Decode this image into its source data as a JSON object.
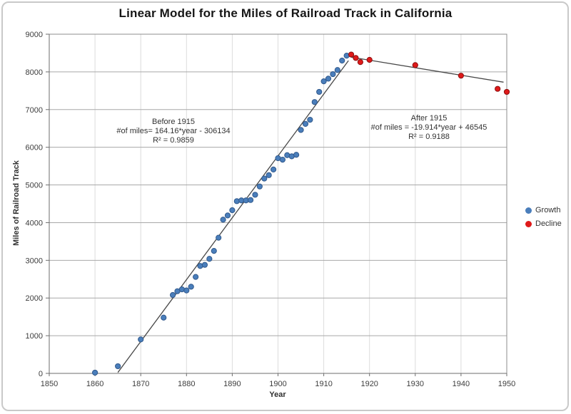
{
  "title": "Linear Model for the Miles of Railroad Track in California",
  "x_axis_title": "Year",
  "y_axis_title": "Miles of Railroad Track",
  "annotations": {
    "before_1915": {
      "title": "Before 1915",
      "equation": "#of miles= 164.16*year - 306134",
      "r_squared": "R² = 0.9859"
    },
    "after_1915": {
      "title": "After 1915",
      "equation": "#of miles = -19.914*year + 46545",
      "r_squared": "R² = 0.9188"
    }
  },
  "legend": {
    "items": [
      {
        "label": "Growth",
        "color": "#4A7EBB"
      },
      {
        "label": "Decline",
        "color": "#DF1A1A"
      }
    ]
  },
  "colors": {
    "h_grid": "#a8a8a8",
    "v_grid": "#dcdcdc",
    "plot_border": "#8c8c8c",
    "axis": "#6e6e6e",
    "tick_text": "#3d3d3d",
    "trendline": "#474747"
  },
  "chart_data": {
    "type": "scatter",
    "title": "Linear Model for the Miles of Railroad Track in California",
    "xlabel": "Year",
    "ylabel": "Miles of Railroad Track",
    "xlim": [
      1850,
      1950
    ],
    "ylim": [
      0,
      9000
    ],
    "x_ticks": [
      1850,
      1860,
      1870,
      1880,
      1890,
      1900,
      1910,
      1920,
      1930,
      1940,
      1950
    ],
    "y_ticks": [
      0,
      1000,
      2000,
      3000,
      4000,
      5000,
      6000,
      7000,
      8000,
      9000
    ],
    "grid": true,
    "legend_position": "right",
    "series": [
      {
        "name": "Growth",
        "marker_color": "#4A7EBB",
        "marker_edge": "#31598C",
        "points": [
          [
            1860,
            20
          ],
          [
            1865,
            190
          ],
          [
            1870,
            900
          ],
          [
            1875,
            1480
          ],
          [
            1877,
            2080
          ],
          [
            1878,
            2180
          ],
          [
            1879,
            2230
          ],
          [
            1880,
            2200
          ],
          [
            1881,
            2300
          ],
          [
            1882,
            2560
          ],
          [
            1883,
            2850
          ],
          [
            1884,
            2880
          ],
          [
            1885,
            3040
          ],
          [
            1886,
            3250
          ],
          [
            1887,
            3600
          ],
          [
            1888,
            4080
          ],
          [
            1889,
            4190
          ],
          [
            1890,
            4330
          ],
          [
            1891,
            4570
          ],
          [
            1892,
            4590
          ],
          [
            1893,
            4590
          ],
          [
            1894,
            4600
          ],
          [
            1895,
            4740
          ],
          [
            1896,
            4960
          ],
          [
            1897,
            5170
          ],
          [
            1898,
            5260
          ],
          [
            1899,
            5410
          ],
          [
            1900,
            5710
          ],
          [
            1901,
            5670
          ],
          [
            1902,
            5790
          ],
          [
            1903,
            5760
          ],
          [
            1904,
            5800
          ],
          [
            1905,
            6460
          ],
          [
            1906,
            6620
          ],
          [
            1907,
            6730
          ],
          [
            1908,
            7200
          ],
          [
            1909,
            7470
          ],
          [
            1910,
            7750
          ],
          [
            1911,
            7820
          ],
          [
            1912,
            7940
          ],
          [
            1913,
            8050
          ],
          [
            1914,
            8300
          ],
          [
            1915,
            8430
          ]
        ]
      },
      {
        "name": "Decline",
        "marker_color": "#DF1A1A",
        "marker_edge": "#8E0E0E",
        "points": [
          [
            1916,
            8460
          ],
          [
            1917,
            8370
          ],
          [
            1918,
            8260
          ],
          [
            1920,
            8320
          ],
          [
            1930,
            8180
          ],
          [
            1940,
            7900
          ],
          [
            1948,
            7550
          ],
          [
            1950,
            7470
          ]
        ]
      }
    ],
    "trendlines": [
      {
        "label": "Before 1915",
        "equation": "miles = 164.16*year - 306134",
        "r2": 0.9859,
        "from": [
          1865.0,
          25
        ],
        "to": [
          1915.4,
          8298
        ]
      },
      {
        "label": "After 1915",
        "equation": "miles = -19.914*year + 46545",
        "r2": 0.9188,
        "from": [
          1916.0,
          8390
        ],
        "to": [
          1949.3,
          7727
        ]
      }
    ]
  }
}
